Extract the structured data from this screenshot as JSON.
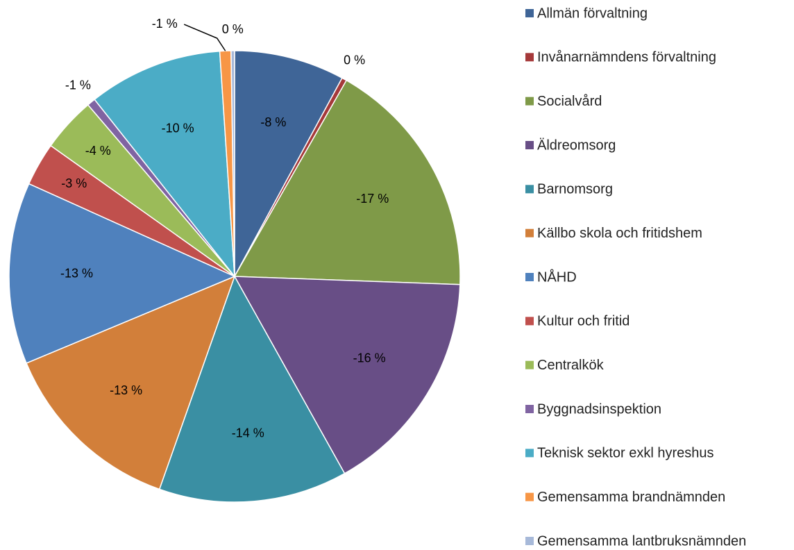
{
  "chart_data": {
    "type": "pie",
    "categories": [
      "Allmän förvaltning",
      "Invånarnämndens förvaltning",
      "Socialvård",
      "Äldreomsorg",
      "Barnomsorg",
      "Källbo skola och fritidshem",
      "NÅHD",
      "Kultur och fritid",
      "Centralkök",
      "Byggnadsinspektion",
      "Teknisk sektor exkl hyreshus",
      "Gemensamma brandnämnden",
      "Gemensamma lantbruksnämnden"
    ],
    "values": [
      -7.9,
      -0.35,
      -17.3,
      -16.3,
      -13.5,
      -13.3,
      -13.0,
      -3.1,
      -3.9,
      -0.6,
      -9.6,
      -0.8,
      -0.25
    ],
    "value_labels": [
      "-8 %",
      "0 %",
      "-17 %",
      "-16 %",
      "-14 %",
      "-13 %",
      "-13 %",
      "-3 %",
      "-4 %",
      "-1 %",
      "-10 %",
      "-1 %",
      "0 %"
    ],
    "colors": [
      "#3f6597",
      "#a5393a",
      "#7f9a48",
      "#684e86",
      "#3a8fa3",
      "#d27f3a",
      "#4f81bd",
      "#c0504d",
      "#9bbb59",
      "#8064a2",
      "#4bacc6",
      "#f79646",
      "#a7b9d9"
    ],
    "legend": "right"
  }
}
